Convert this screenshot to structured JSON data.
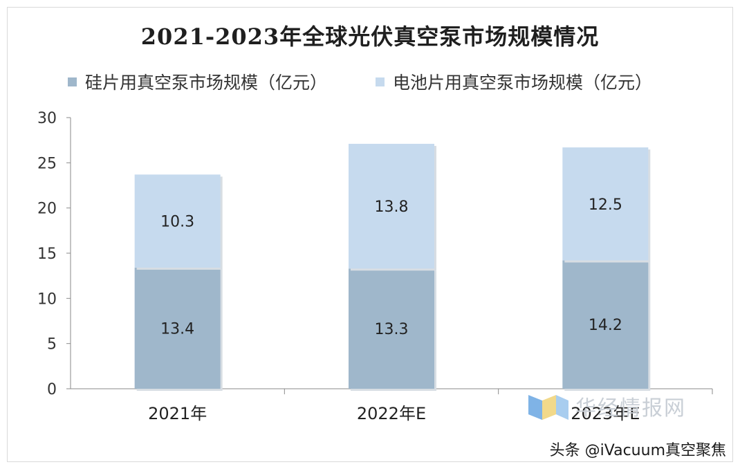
{
  "chart_data": {
    "type": "bar",
    "stacked": true,
    "title": "2021-2023年全球光伏真空泵市场规模情况",
    "categories": [
      "2021年",
      "2022年E",
      "2023年E"
    ],
    "series": [
      {
        "name": "硅片用真空泵市场规模（亿元）",
        "values": [
          13.4,
          13.3,
          14.2
        ],
        "color": "#9fb7cb"
      },
      {
        "name": "电池片用真空泵市场规模（亿元）",
        "values": [
          10.3,
          13.8,
          12.5
        ],
        "color": "#c6daee"
      }
    ],
    "ylim": [
      0,
      30
    ],
    "yticks": [
      0,
      5,
      10,
      15,
      20,
      25,
      30
    ],
    "grid": false,
    "legend_position": "top-left",
    "xlabel": "",
    "ylabel": ""
  },
  "watermark": {
    "text": "华经情报网",
    "icon": "hj-logo-icon"
  },
  "source": {
    "text": "头条 @iVacuum真空聚焦"
  }
}
